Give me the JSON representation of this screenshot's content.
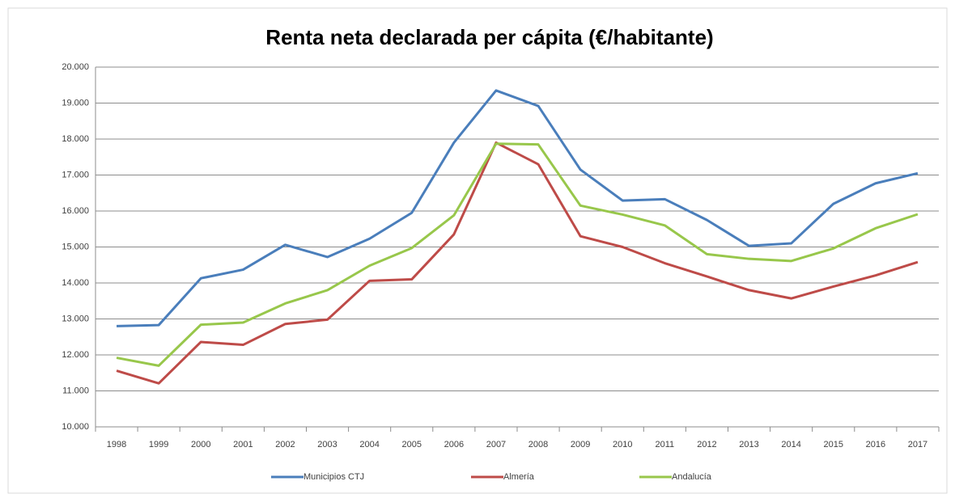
{
  "chart_data": {
    "type": "line",
    "title": "Renta neta declarada per cápita (€/habitante)",
    "categories": [
      "1998",
      "1999",
      "2000",
      "2001",
      "2002",
      "2003",
      "2004",
      "2005",
      "2006",
      "2007",
      "2008",
      "2009",
      "2010",
      "2011",
      "2012",
      "2013",
      "2014",
      "2015",
      "2016",
      "2017"
    ],
    "series": [
      {
        "name": "Municipios CTJ",
        "color": "#4a7ebb",
        "values": [
          12800,
          12830,
          14130,
          14370,
          15060,
          14720,
          15230,
          15950,
          17900,
          19350,
          18920,
          17150,
          16290,
          16330,
          15750,
          15030,
          15100,
          16200,
          16770,
          17050
        ]
      },
      {
        "name": "Almería",
        "color": "#be4b48",
        "values": [
          11560,
          11210,
          12360,
          12280,
          12860,
          12980,
          14060,
          14100,
          15350,
          17900,
          17300,
          15300,
          15000,
          14550,
          14180,
          13800,
          13570,
          13900,
          14210,
          14580
        ]
      },
      {
        "name": "Andalucía",
        "color": "#98c74b",
        "values": [
          11920,
          11700,
          12840,
          12900,
          13430,
          13800,
          14480,
          14970,
          15880,
          17870,
          17850,
          16150,
          15900,
          15600,
          14800,
          14670,
          14610,
          14960,
          15520,
          15910
        ]
      }
    ],
    "ylim": [
      10000,
      20000
    ],
    "yticks": [
      {
        "value": 10000,
        "label": "10.000"
      },
      {
        "value": 11000,
        "label": "11.000"
      },
      {
        "value": 12000,
        "label": "12.000"
      },
      {
        "value": 13000,
        "label": "13.000"
      },
      {
        "value": 14000,
        "label": "14.000"
      },
      {
        "value": 15000,
        "label": "15.000"
      },
      {
        "value": 16000,
        "label": "16.000"
      },
      {
        "value": 17000,
        "label": "17.000"
      },
      {
        "value": 18000,
        "label": "18.000"
      },
      {
        "value": 19000,
        "label": "19.000"
      },
      {
        "value": 20000,
        "label": "20.000"
      }
    ],
    "grid": true,
    "legend": "bottom"
  }
}
